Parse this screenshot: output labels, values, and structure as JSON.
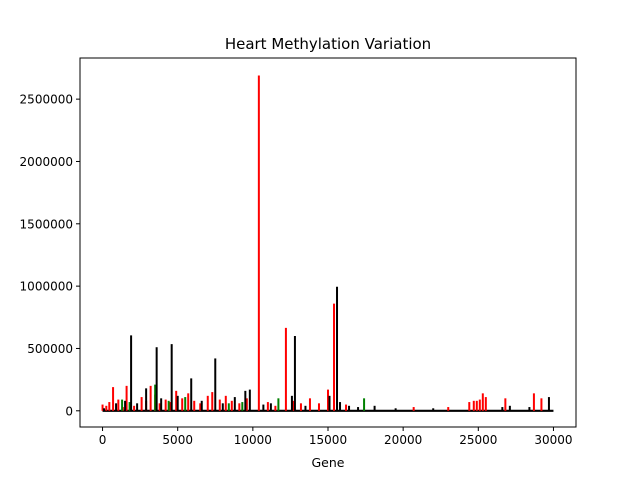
{
  "chart_data": {
    "type": "line",
    "title": "Heart Methylation Variation",
    "xlabel": "Gene",
    "ylabel": "",
    "xlim": [
      -1500,
      31500
    ],
    "ylim": [
      -130000,
      2830000
    ],
    "x_ticks": [
      0,
      5000,
      10000,
      15000,
      20000,
      25000,
      30000
    ],
    "x_tick_labels": [
      "0",
      "5000",
      "10000",
      "15000",
      "20000",
      "25000",
      "30000"
    ],
    "y_ticks": [
      0,
      500000,
      1000000,
      1500000,
      2000000,
      2500000
    ],
    "y_tick_labels": [
      "0",
      "500000",
      "1000000",
      "1500000",
      "2000000",
      "2500000"
    ],
    "grid": false,
    "legend": "none",
    "baseline_end": 30000,
    "colors": {
      "series_red": "#ff0000",
      "series_green": "#008000",
      "series_black": "#000000"
    },
    "series": [
      {
        "color": "#ff0000",
        "x": [
          0,
          250,
          450,
          700,
          1050,
          1350,
          1600,
          2100,
          2600,
          2900,
          3200,
          3500,
          3800,
          4200,
          4500,
          4900,
          5300,
          5700,
          6100,
          6500,
          7000,
          7300,
          7800,
          8200,
          8600,
          9100,
          9600,
          10400,
          11000,
          11500,
          12200,
          12700,
          13200,
          13800,
          14400,
          15000,
          15400,
          16200,
          20700,
          23000,
          24400,
          24700,
          24900,
          25100,
          25300,
          25500,
          26800,
          28700,
          29200
        ],
        "values": [
          50000,
          40000,
          70000,
          190000,
          90000,
          30000,
          200000,
          40000,
          110000,
          80000,
          200000,
          130000,
          60000,
          90000,
          70000,
          160000,
          100000,
          140000,
          80000,
          60000,
          120000,
          150000,
          90000,
          120000,
          80000,
          60000,
          100000,
          2690000,
          70000,
          40000,
          665000,
          80000,
          60000,
          100000,
          60000,
          170000,
          860000,
          50000,
          30000,
          30000,
          70000,
          80000,
          80000,
          90000,
          140000,
          110000,
          100000,
          140000,
          100000
        ]
      },
      {
        "color": "#008000",
        "x": [
          1300,
          1800,
          3500,
          4400,
          5500,
          8400,
          9300,
          11700,
          17400
        ],
        "values": [
          90000,
          70000,
          210000,
          80000,
          110000,
          60000,
          70000,
          100000,
          100000
        ]
      },
      {
        "color": "#000000",
        "x": [
          100,
          900,
          1500,
          1900,
          2300,
          2900,
          3600,
          3900,
          4600,
          5000,
          5900,
          6600,
          7500,
          8000,
          8800,
          9500,
          9800,
          10700,
          11200,
          12600,
          12800,
          13500,
          15100,
          15600,
          15800,
          16400,
          17000,
          18100,
          19500,
          22000,
          26600,
          27100,
          28400,
          29700
        ],
        "values": [
          20000,
          60000,
          80000,
          605000,
          60000,
          180000,
          510000,
          100000,
          535000,
          120000,
          260000,
          80000,
          420000,
          60000,
          110000,
          160000,
          170000,
          50000,
          60000,
          120000,
          600000,
          40000,
          120000,
          995000,
          70000,
          40000,
          30000,
          40000,
          20000,
          20000,
          30000,
          40000,
          30000,
          110000
        ]
      }
    ]
  }
}
